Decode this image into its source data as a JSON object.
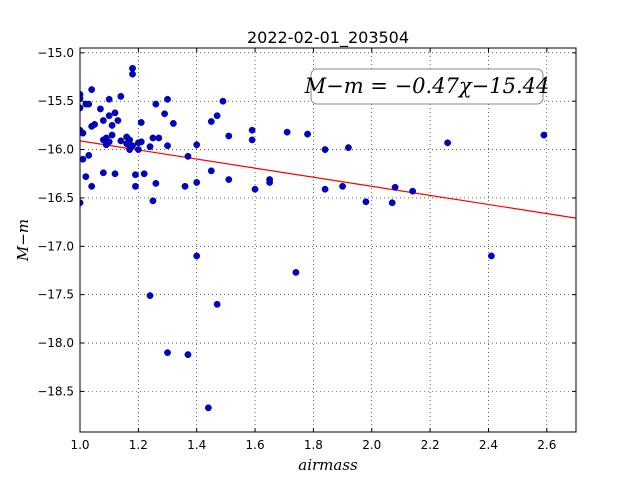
{
  "chart_data": {
    "type": "scatter",
    "title": "2022-02-01_203504",
    "xlabel": "airmass",
    "ylabel": "M−m",
    "xlim": [
      1.0,
      2.7
    ],
    "ylim": [
      -18.92,
      -14.95
    ],
    "y_inverted": true,
    "grid": true,
    "grid_style": "dotted",
    "x_ticks": [
      1.0,
      1.2,
      1.4,
      1.6,
      1.8,
      2.0,
      2.2,
      2.4,
      2.6
    ],
    "x_tick_labels": [
      "1.0",
      "1.2",
      "1.4",
      "1.6",
      "1.8",
      "2.0",
      "2.2",
      "2.4",
      "2.6"
    ],
    "y_ticks": [
      -15.0,
      -15.5,
      -16.0,
      -16.5,
      -17.0,
      -17.5,
      -18.0,
      -18.5
    ],
    "y_tick_labels": [
      "−15.0",
      "−15.5",
      "−16.0",
      "−16.5",
      "−17.0",
      "−17.5",
      "−18.0",
      "−18.5"
    ],
    "annotation": "M−m = −0.47χ−15.44",
    "fit": {
      "slope": -0.47,
      "intercept": -15.44,
      "color": "#ff0000"
    },
    "point_color": "#0000cc",
    "points": [
      [
        1.0,
        -15.43
      ],
      [
        1.0,
        -15.47
      ],
      [
        1.0,
        -15.57
      ],
      [
        1.0,
        -15.8
      ],
      [
        1.0,
        -16.55
      ],
      [
        1.01,
        -15.83
      ],
      [
        1.01,
        -16.1
      ],
      [
        1.02,
        -15.53
      ],
      [
        1.02,
        -16.28
      ],
      [
        1.03,
        -15.53
      ],
      [
        1.03,
        -16.06
      ],
      [
        1.04,
        -15.38
      ],
      [
        1.04,
        -15.76
      ],
      [
        1.04,
        -16.38
      ],
      [
        1.05,
        -15.74
      ],
      [
        1.07,
        -15.58
      ],
      [
        1.08,
        -15.7
      ],
      [
        1.08,
        -15.9
      ],
      [
        1.08,
        -16.24
      ],
      [
        1.09,
        -15.88
      ],
      [
        1.09,
        -15.95
      ],
      [
        1.1,
        -15.48
      ],
      [
        1.1,
        -15.65
      ],
      [
        1.1,
        -15.92
      ],
      [
        1.11,
        -15.85
      ],
      [
        1.11,
        -15.75
      ],
      [
        1.12,
        -15.62
      ],
      [
        1.12,
        -16.25
      ],
      [
        1.13,
        -15.7
      ],
      [
        1.14,
        -15.45
      ],
      [
        1.14,
        -15.91
      ],
      [
        1.16,
        -15.87
      ],
      [
        1.16,
        -15.94
      ],
      [
        1.17,
        -15.9
      ],
      [
        1.17,
        -16.0
      ],
      [
        1.18,
        -15.16
      ],
      [
        1.18,
        -15.22
      ],
      [
        1.18,
        -15.96
      ],
      [
        1.19,
        -16.26
      ],
      [
        1.19,
        -16.38
      ],
      [
        1.2,
        -15.93
      ],
      [
        1.2,
        -16.0
      ],
      [
        1.21,
        -15.72
      ],
      [
        1.21,
        -15.92
      ],
      [
        1.22,
        -16.25
      ],
      [
        1.24,
        -17.51
      ],
      [
        1.24,
        -15.97
      ],
      [
        1.25,
        -15.88
      ],
      [
        1.25,
        -16.53
      ],
      [
        1.26,
        -16.35
      ],
      [
        1.26,
        -15.53
      ],
      [
        1.27,
        -15.88
      ],
      [
        1.29,
        -15.63
      ],
      [
        1.3,
        -15.48
      ],
      [
        1.3,
        -15.96
      ],
      [
        1.3,
        -18.1
      ],
      [
        1.32,
        -15.73
      ],
      [
        1.36,
        -16.38
      ],
      [
        1.37,
        -18.12
      ],
      [
        1.37,
        -16.07
      ],
      [
        1.4,
        -15.95
      ],
      [
        1.4,
        -16.34
      ],
      [
        1.4,
        -17.1
      ],
      [
        1.44,
        -18.67
      ],
      [
        1.45,
        -16.22
      ],
      [
        1.45,
        -15.71
      ],
      [
        1.47,
        -15.65
      ],
      [
        1.47,
        -17.6
      ],
      [
        1.49,
        -15.5
      ],
      [
        1.51,
        -15.86
      ],
      [
        1.51,
        -16.31
      ],
      [
        1.59,
        -15.8
      ],
      [
        1.59,
        -15.9
      ],
      [
        1.6,
        -16.41
      ],
      [
        1.65,
        -16.31
      ],
      [
        1.65,
        -16.34
      ],
      [
        1.71,
        -15.82
      ],
      [
        1.74,
        -17.27
      ],
      [
        1.78,
        -15.84
      ],
      [
        1.84,
        -16.41
      ],
      [
        1.84,
        -16.0
      ],
      [
        1.9,
        -16.38
      ],
      [
        1.92,
        -15.98
      ],
      [
        1.98,
        -16.54
      ],
      [
        2.07,
        -16.55
      ],
      [
        2.08,
        -16.39
      ],
      [
        2.14,
        -16.43
      ],
      [
        2.26,
        -15.93
      ],
      [
        2.41,
        -17.1
      ],
      [
        2.59,
        -15.85
      ]
    ]
  }
}
